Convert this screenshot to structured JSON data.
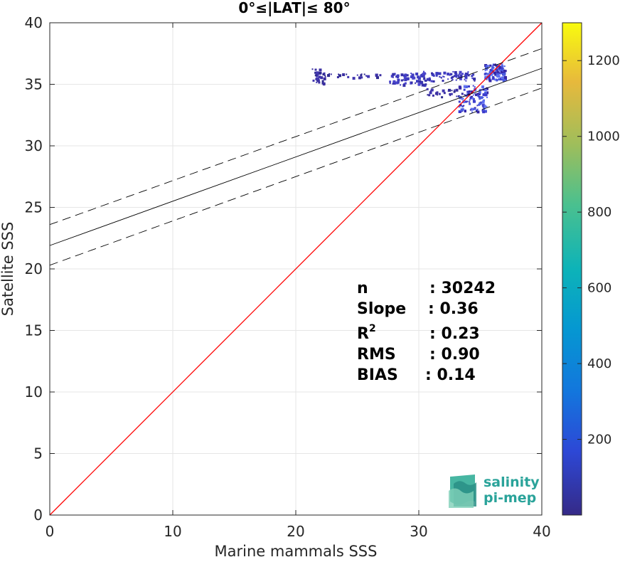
{
  "chart_data": {
    "type": "heatmap",
    "title": "0°≤|LAT|≤ 80°",
    "xlabel": "Marine mammals SSS",
    "ylabel": "Satellite SSS",
    "xlim": [
      0,
      40
    ],
    "ylim": [
      0,
      40
    ],
    "xticks": [
      "0",
      "10",
      "20",
      "30",
      "40"
    ],
    "yticks": [
      "0",
      "5",
      "10",
      "15",
      "20",
      "25",
      "30",
      "35",
      "40"
    ],
    "grid": true,
    "colorbar": {
      "range": [
        0,
        1300
      ],
      "ticks": [
        "200",
        "400",
        "600",
        "800",
        "1000",
        "1200"
      ],
      "colormap": "parula"
    },
    "lines": [
      {
        "kind": "one-to-one",
        "color": "#ff0000",
        "x": [
          0,
          40
        ],
        "y": [
          0,
          40
        ]
      },
      {
        "kind": "regression",
        "color": "#000000",
        "style": "solid",
        "x": [
          0,
          40
        ],
        "y": [
          21.9,
          36.3
        ]
      },
      {
        "kind": "regression-upper",
        "color": "#000000",
        "style": "dashed",
        "x": [
          0,
          40
        ],
        "y": [
          23.6,
          37.9
        ]
      },
      {
        "kind": "regression-lower",
        "color": "#000000",
        "style": "dashed",
        "x": [
          0,
          40
        ],
        "y": [
          20.3,
          34.7
        ]
      }
    ],
    "density_clusters": [
      {
        "x": [
          21.3,
          22.3
        ],
        "y": [
          35.0,
          36.4
        ],
        "level": "low"
      },
      {
        "x": [
          22.3,
          27.0
        ],
        "y": [
          35.6,
          35.9
        ],
        "level": "low"
      },
      {
        "x": [
          27.5,
          30.5
        ],
        "y": [
          35.0,
          36.0
        ],
        "level": "low-mid"
      },
      {
        "x": [
          30.3,
          34.5
        ],
        "y": [
          35.3,
          36.1
        ],
        "level": "low-mid"
      },
      {
        "x": [
          30.5,
          33.5
        ],
        "y": [
          34.0,
          34.7
        ],
        "level": "low"
      },
      {
        "x": [
          33.2,
          35.5
        ],
        "y": [
          32.8,
          35.0
        ],
        "level": "mid"
      },
      {
        "x": [
          35.3,
          37.0
        ],
        "y": [
          35.4,
          36.7
        ],
        "level": "mid"
      }
    ],
    "stats": [
      {
        "label": "n",
        "value": ": 30242"
      },
      {
        "label": "Slope",
        "value": ": 0.36"
      },
      {
        "label": "R",
        "sup": "2",
        "value": ": 0.23"
      },
      {
        "label": "RMS",
        "value": ": 0.90"
      },
      {
        "label": "BIAS",
        "value": ": 0.14"
      }
    ]
  },
  "logo": {
    "line1": "salinity",
    "line2": "pi-mep",
    "color": "#2aa39a"
  }
}
